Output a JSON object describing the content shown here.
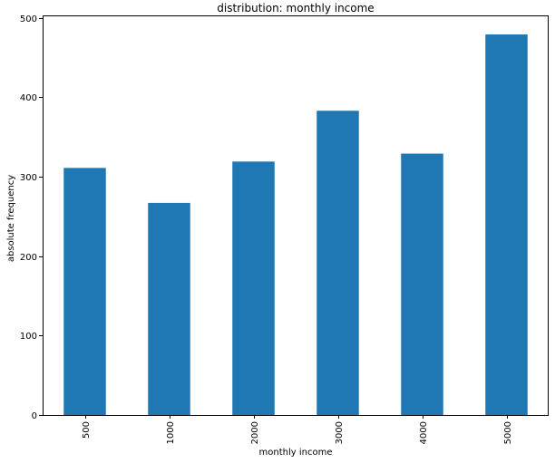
{
  "chart_data": {
    "type": "bar",
    "title": "distribution: monthly income",
    "xlabel": "monthly income",
    "ylabel": "absolute frequency",
    "categories": [
      "500",
      "1000",
      "2000",
      "3000",
      "4000",
      "5000"
    ],
    "values": [
      311,
      267,
      319,
      383,
      329,
      479
    ],
    "ylim": [
      0,
      503
    ],
    "yticks": [
      0,
      100,
      200,
      300,
      400,
      500
    ],
    "xtick_rotation": "vertical",
    "grid": false,
    "legend": "none",
    "bar_color": "#1f77b4"
  }
}
